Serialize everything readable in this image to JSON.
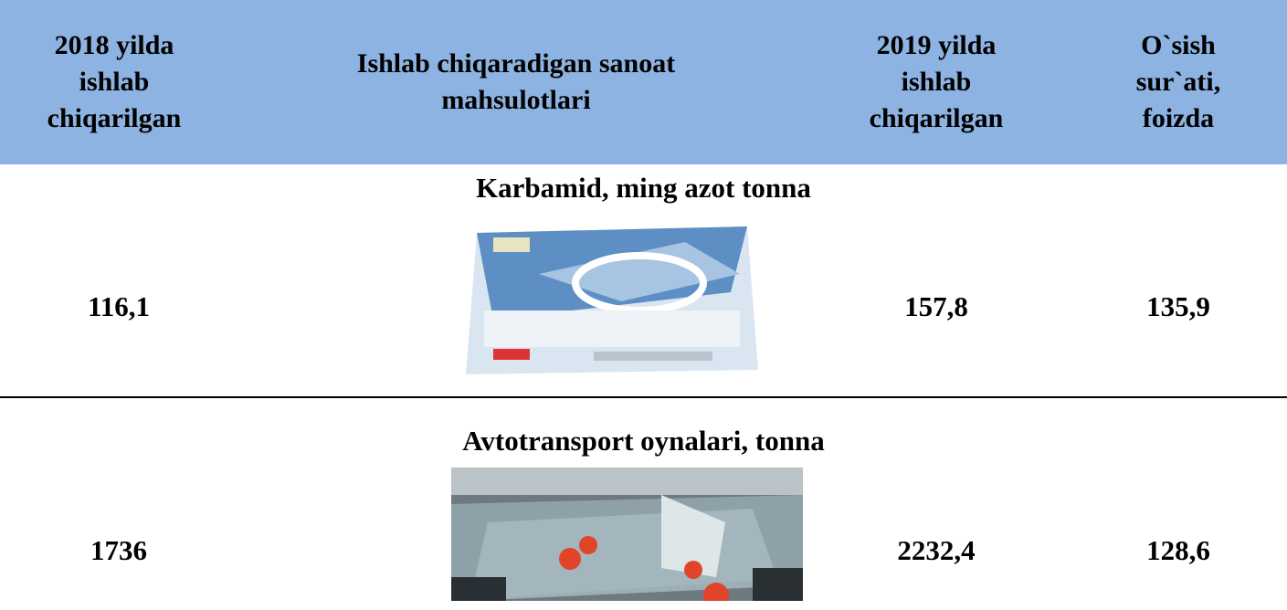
{
  "table": {
    "header": [
      "2018 yilda ishlab chiqarilgan",
      "Ishlab chiqaradigan sanoat mahsulotlari",
      "2019 yilda ishlab chiqarilgan",
      "O`sish sur`ati, foizda"
    ],
    "rows": [
      {
        "product": "Karbamid, ming azot tonna",
        "y2018": "116,1",
        "y2019": "157,8",
        "growth": "135,9"
      },
      {
        "product": "Avtotransport oynalari, tonna",
        "y2018": "1736",
        "y2019": "2232,4",
        "growth": "128,6"
      }
    ]
  }
}
